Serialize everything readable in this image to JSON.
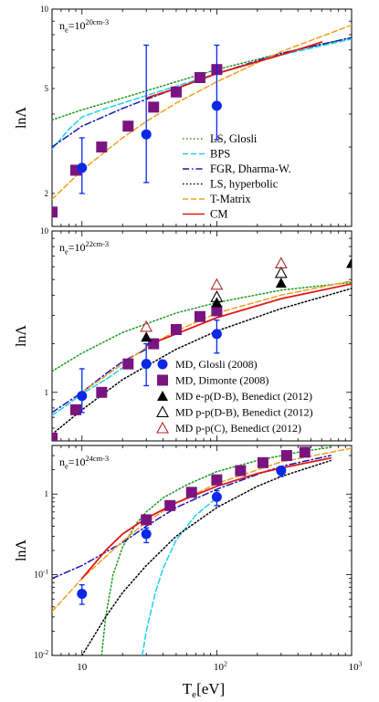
{
  "xlabel": "T_e[eV]",
  "x_ticks": [
    "10",
    "10^2",
    "10^3"
  ],
  "colors": {
    "ls_glosli": "#1a9a1a",
    "bps": "#20d0e8",
    "fgr": "#1818b0",
    "ls_hyperbolic": "#000000",
    "tmatrix": "#f0a020",
    "cm": "#e01818",
    "md_glosli": "#0a28e6",
    "md_dimonte": "#7a1480",
    "md_benedict_c": "#b02828"
  },
  "chart_data": [
    {
      "type": "line",
      "annotation": "n_e=10^20 cm^-3",
      "ylabel": "lnΛ",
      "x_log": true,
      "y_log": true,
      "xlim": [
        6,
        1000
      ],
      "ylim": [
        1.5,
        10
      ],
      "y_tick_labels": [
        "2",
        "5",
        "10"
      ],
      "legend": {
        "position": "center-right",
        "entries": [
          "LS, Glosli",
          "BPS",
          "FGR, Dharma-W.",
          "LS, hyperbolic",
          "T-Matrix",
          "CM"
        ]
      },
      "series": [
        {
          "name": "LS, Glosli",
          "style": "dotted",
          "x": [
            6,
            10,
            20,
            50,
            100,
            300,
            1000
          ],
          "y": [
            3.8,
            4.15,
            4.6,
            5.3,
            5.9,
            6.8,
            7.8
          ]
        },
        {
          "name": "BPS",
          "style": "dashed",
          "x": [
            6,
            8,
            10,
            15,
            20,
            30,
            50,
            100,
            300,
            1000
          ],
          "y": [
            2.95,
            3.5,
            3.9,
            4.2,
            4.4,
            4.7,
            5.1,
            5.7,
            6.7,
            7.7
          ]
        },
        {
          "name": "FGR, Dharma-W.",
          "style": "dashdot",
          "x": [
            6,
            10,
            20,
            30,
            50,
            100,
            300,
            1000
          ],
          "y": [
            3.0,
            3.6,
            4.2,
            4.55,
            5.0,
            5.7,
            6.8,
            7.8
          ]
        },
        {
          "name": "T-Matrix",
          "style": "dashed",
          "x": [
            6,
            10,
            20,
            30,
            50,
            100,
            300,
            1000
          ],
          "y": [
            1.9,
            2.45,
            3.25,
            3.75,
            4.4,
            5.3,
            6.9,
            8.7
          ]
        },
        {
          "name": "CM",
          "style": "solid",
          "x": [
            30,
            50,
            100,
            300,
            600
          ],
          "y": [
            4.6,
            5.0,
            5.7,
            6.7,
            7.5
          ]
        }
      ],
      "points": [
        {
          "name": "MD, Dimonte (2008)",
          "marker": "square",
          "x": [
            6,
            9,
            14,
            22,
            34,
            50,
            75,
            100
          ],
          "y": [
            1.7,
            2.45,
            3.0,
            3.6,
            4.25,
            4.85,
            5.5,
            5.9
          ]
        },
        {
          "name": "MD, Glosli (2008)",
          "marker": "circle",
          "x": [
            10,
            30,
            100
          ],
          "y": [
            2.5,
            3.35,
            4.3
          ],
          "err_low": [
            2.0,
            2.2,
            3.2
          ],
          "err_high": [
            3.25,
            7.3,
            7.3
          ]
        }
      ]
    },
    {
      "type": "line",
      "annotation": "n_e=10^22 cm^-3",
      "ylabel": "lnΛ",
      "x_log": true,
      "y_log": true,
      "xlim": [
        6,
        1000
      ],
      "ylim": [
        0.5,
        10
      ],
      "y_tick_labels": [
        "1",
        "10"
      ],
      "legend": {
        "position": "bottom-right",
        "entries": [
          "MD, Glosli (2008)",
          "MD, Dimonte (2008)",
          "MD e-p(D-B), Benedict (2012)",
          "MD p-p(D-B), Benedict (2012)",
          "MD p-p(C), Benedict (2012)"
        ]
      },
      "series": [
        {
          "name": "LS, Glosli",
          "style": "dotted",
          "x": [
            6,
            10,
            20,
            50,
            100,
            300,
            1000
          ],
          "y": [
            1.35,
            1.75,
            2.35,
            3.1,
            3.6,
            4.3,
            4.8
          ]
        },
        {
          "name": "BPS",
          "style": "dashed",
          "x": [
            6,
            8,
            10,
            15,
            20
          ],
          "y": [
            0.72,
            0.85,
            0.98,
            1.2,
            1.42
          ]
        },
        {
          "name": "FGR, Dharma-W.",
          "style": "dashdot",
          "x": [
            6,
            8,
            10,
            15,
            20,
            30
          ],
          "y": [
            0.75,
            0.88,
            1.0,
            1.3,
            1.55,
            1.85
          ]
        },
        {
          "name": "LS, hyperbolic",
          "style": "dotted",
          "x": [
            6,
            10,
            20,
            50,
            100,
            300,
            1000
          ],
          "y": [
            0.55,
            0.78,
            1.2,
            1.85,
            2.4,
            3.3,
            4.4
          ]
        },
        {
          "name": "T-Matrix",
          "style": "dashed",
          "x": [
            10,
            20,
            30,
            50,
            100,
            300,
            1000
          ],
          "y": [
            1.0,
            1.5,
            1.9,
            2.4,
            3.1,
            4.0,
            4.9
          ]
        },
        {
          "name": "CM",
          "style": "solid",
          "x": [
            30,
            50,
            100,
            300,
            1000
          ],
          "y": [
            1.95,
            2.3,
            2.9,
            3.8,
            4.7
          ]
        }
      ],
      "points": [
        {
          "name": "MD, Dimonte (2008)",
          "marker": "square",
          "x": [
            6,
            9,
            14,
            22,
            34,
            50,
            75,
            100
          ],
          "y": [
            0.52,
            0.78,
            1.0,
            1.5,
            2.0,
            2.45,
            2.95,
            3.2
          ]
        },
        {
          "name": "MD, Glosli (2008)",
          "marker": "circle",
          "x": [
            10,
            30,
            100
          ],
          "y": [
            0.95,
            1.5,
            2.3
          ],
          "err_low": [
            0.75,
            1.1,
            1.75
          ],
          "err_high": [
            1.4,
            2.0,
            2.8
          ]
        },
        {
          "name": "MD e-p(D-B), Benedict (2012)",
          "marker": "filled-triangle",
          "x": [
            30,
            100,
            300,
            1000
          ],
          "y": [
            2.2,
            3.6,
            4.75,
            6.3
          ]
        },
        {
          "name": "MD p-p(D-B), Benedict (2012)",
          "marker": "open-triangle",
          "x": [
            100,
            300
          ],
          "y": [
            3.9,
            5.5
          ]
        },
        {
          "name": "MD p-p(C), Benedict (2012)",
          "marker": "open-triangle-red",
          "x": [
            30,
            100,
            300
          ],
          "y": [
            2.55,
            4.65,
            6.3
          ]
        }
      ]
    },
    {
      "type": "line",
      "annotation": "n_e=10^24 cm^-3",
      "ylabel": "lnΛ",
      "x_log": true,
      "y_log": true,
      "xlim": [
        6,
        1000
      ],
      "ylim": [
        0.01,
        4
      ],
      "y_tick_labels": [
        "10^-2",
        "10^-1",
        "1"
      ],
      "series": [
        {
          "name": "LS, Glosli",
          "style": "dotted",
          "x": [
            14,
            15,
            17,
            20,
            25,
            30,
            40,
            60,
            100,
            200,
            400,
            700
          ],
          "y": [
            0.01,
            0.03,
            0.1,
            0.22,
            0.42,
            0.6,
            0.9,
            1.3,
            1.9,
            2.6,
            3.3,
            3.8
          ]
        },
        {
          "name": "BPS",
          "style": "dashed",
          "x": [
            28,
            30,
            35,
            40,
            50,
            70,
            100
          ],
          "y": [
            0.01,
            0.02,
            0.06,
            0.12,
            0.27,
            0.55,
            0.9
          ]
        },
        {
          "name": "FGR, Dharma-W.",
          "style": "dashdot",
          "x": [
            6,
            10,
            20,
            30,
            50,
            100,
            200,
            300,
            700
          ],
          "y": [
            0.09,
            0.13,
            0.25,
            0.4,
            0.68,
            1.15,
            1.75,
            2.2,
            3.0
          ]
        },
        {
          "name": "LS, hyperbolic",
          "style": "dotted",
          "x": [
            10,
            15,
            20,
            30,
            50,
            100,
            200,
            300,
            700
          ],
          "y": [
            0.01,
            0.03,
            0.06,
            0.13,
            0.3,
            0.68,
            1.25,
            1.65,
            2.6
          ]
        },
        {
          "name": "T-Matrix",
          "style": "dashed",
          "x": [
            6,
            10,
            20,
            30,
            50,
            100,
            300,
            1000
          ],
          "y": [
            0.035,
            0.09,
            0.26,
            0.45,
            0.78,
            1.35,
            2.5,
            3.7
          ]
        },
        {
          "name": "CM",
          "style": "solid",
          "x": [
            10,
            15,
            20,
            30,
            50,
            100,
            200,
            300,
            700
          ],
          "y": [
            0.09,
            0.2,
            0.32,
            0.5,
            0.78,
            1.25,
            1.8,
            2.1,
            2.8
          ]
        }
      ],
      "points": [
        {
          "name": "MD, Dimonte (2008)",
          "marker": "square",
          "x": [
            30,
            45,
            65,
            100,
            150,
            220,
            330,
            450
          ],
          "y": [
            0.48,
            0.72,
            1.05,
            1.5,
            1.95,
            2.45,
            3.0,
            3.3
          ]
        },
        {
          "name": "MD, Glosli (2008)",
          "marker": "circle",
          "x": [
            10,
            30,
            100,
            300
          ],
          "y": [
            0.058,
            0.32,
            0.92,
            1.95
          ],
          "err_low": [
            0.043,
            0.25,
            0.72,
            1.65
          ],
          "err_high": [
            0.075,
            0.38,
            1.1,
            2.2
          ]
        }
      ]
    }
  ]
}
